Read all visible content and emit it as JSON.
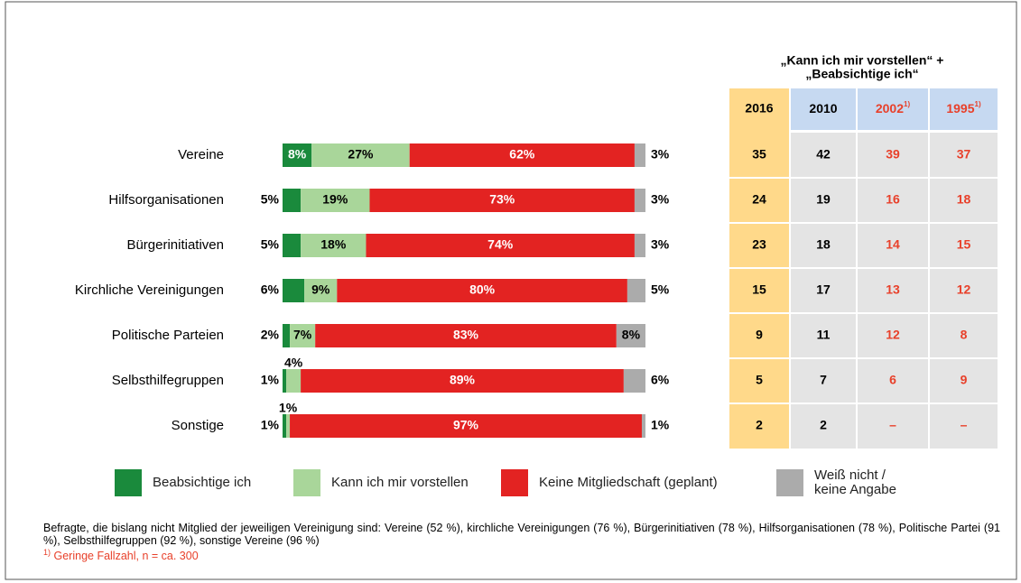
{
  "chart_data": {
    "type": "bar",
    "orientation": "horizontal",
    "stacked": true,
    "categories": [
      "Vereine",
      "Hilfsorganisationen",
      "Bürgerinitiativen",
      "Kirchliche Vereinigungen",
      "Politische Parteien",
      "Selbsthilfegruppen",
      "Sonstige"
    ],
    "series": [
      {
        "name": "Beabsichtige ich",
        "color": "#1a8a3c",
        "values": [
          8,
          5,
          5,
          6,
          2,
          1,
          1
        ],
        "value_labels": [
          "8%",
          "5%",
          "5%",
          "6%",
          "2%",
          "1%",
          "1%"
        ]
      },
      {
        "name": "Kann ich mir vorstellen",
        "color": "#a9d69a",
        "values": [
          27,
          19,
          18,
          9,
          7,
          4,
          1
        ],
        "value_labels": [
          "27%",
          "19%",
          "18%",
          "9%",
          "7%",
          "4%",
          "1%"
        ]
      },
      {
        "name": "Keine Mitgliedschaft (geplant)",
        "color": "#e32322",
        "values": [
          62,
          73,
          74,
          80,
          83,
          89,
          97
        ],
        "value_labels": [
          "62%",
          "73%",
          "74%",
          "80%",
          "83%",
          "89%",
          "97%"
        ]
      },
      {
        "name": "Weiß nicht / keine Angabe",
        "color": "#ababab",
        "values": [
          3,
          3,
          3,
          5,
          8,
          6,
          1
        ],
        "value_labels": [
          "3%",
          "3%",
          "3%",
          "5%",
          "8%",
          "6%",
          "1%"
        ]
      }
    ]
  },
  "table": {
    "title": [
      "„Kann ich mir vorstellen“ +",
      "„Beabsichtige ich“"
    ],
    "columns": [
      {
        "label": "2016"
      },
      {
        "label": "2010"
      },
      {
        "label": "2002",
        "note": "1)"
      },
      {
        "label": "1995",
        "note": "1)"
      }
    ],
    "rows": [
      [
        35,
        42,
        39,
        37
      ],
      [
        24,
        19,
        16,
        18
      ],
      [
        23,
        18,
        14,
        15
      ],
      [
        15,
        17,
        13,
        12
      ],
      [
        9,
        11,
        12,
        8
      ],
      [
        5,
        7,
        6,
        9
      ],
      [
        2,
        2,
        "–",
        "–"
      ]
    ]
  },
  "note": "Befragte, die bislang nicht Mitglied der jeweiligen Vereinigung sind: Vereine (52 %), kirchliche Vereinigungen (76 %), Bürgerinitiativen (78 %), Hilfsorganisationen (78 %), Politische Partei (91 %), Selbsthilfegruppen (92 %), sonstige Vereine (96 %)",
  "footnote": {
    "marker": "1)",
    "text": "Geringe Fallzahl, n = ca. 300"
  }
}
